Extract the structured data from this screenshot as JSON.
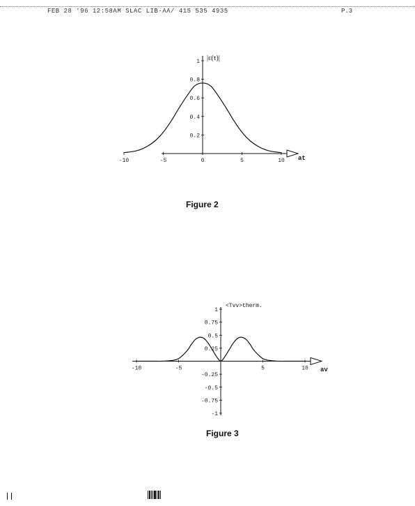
{
  "header": {
    "fax_text": "FEB 28 '96 12:58AM SLAC LIB-AA/ 415 535 4935",
    "page_number": "P.3"
  },
  "figures": {
    "figure2": {
      "caption": "Figure 2"
    },
    "figure3": {
      "caption": "Figure 3"
    }
  },
  "chart_data": [
    {
      "type": "line",
      "title": "",
      "ylabel": "|ε(τ)|",
      "xlabel": "at",
      "x_ticks": [
        "-10",
        "-5",
        "0",
        "5",
        "10"
      ],
      "y_ticks": [
        "0.2",
        "0.4",
        "0.6",
        "0.8",
        "1"
      ],
      "xlim": [
        -10,
        10
      ],
      "ylim": [
        0,
        1
      ],
      "series": [
        {
          "values_x": [
            -10,
            -9,
            -8,
            -7,
            -6,
            -5,
            -4,
            -3,
            -2,
            -1,
            0,
            1,
            2,
            3,
            4,
            5,
            6,
            7,
            8,
            9,
            10
          ],
          "values_y": [
            0.01,
            0.02,
            0.04,
            0.08,
            0.14,
            0.23,
            0.35,
            0.49,
            0.62,
            0.73,
            0.76,
            0.73,
            0.62,
            0.49,
            0.35,
            0.23,
            0.14,
            0.08,
            0.04,
            0.02,
            0.01
          ]
        }
      ]
    },
    {
      "type": "line",
      "title": "",
      "ylabel": "<Tvv>therm.",
      "xlabel": "av",
      "x_ticks": [
        "-10",
        "-5",
        "5",
        "10"
      ],
      "y_ticks": [
        "1",
        "0.75",
        "0.5",
        "0.25",
        "-0.25",
        "-0.5",
        "-0.75",
        "-1"
      ],
      "xlim": [
        -10,
        10
      ],
      "ylim": [
        -1,
        1
      ],
      "series": [
        {
          "values_x": [
            -10,
            -8,
            -7,
            -6,
            -5,
            -4,
            -3.5,
            -3,
            -2.5,
            -2,
            -1.5,
            -1,
            -0.5,
            0,
            0.5,
            1,
            1.5,
            2,
            2.5,
            3,
            3.5,
            4,
            5,
            6,
            7,
            8,
            10
          ],
          "values_y": [
            0,
            0,
            0,
            0.01,
            0.05,
            0.2,
            0.32,
            0.42,
            0.46,
            0.44,
            0.35,
            0.22,
            0.09,
            0,
            0.09,
            0.22,
            0.35,
            0.44,
            0.46,
            0.42,
            0.32,
            0.2,
            0.05,
            0.01,
            0,
            0,
            0
          ]
        }
      ]
    }
  ]
}
